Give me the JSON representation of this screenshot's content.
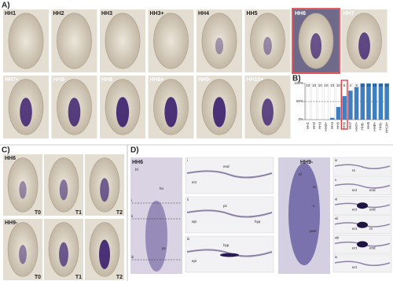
{
  "panels": {
    "a": "A)",
    "b": "B)",
    "c": "C)",
    "d": "D)"
  },
  "panel_a": {
    "labels": [
      "HH1",
      "HH2",
      "HH3",
      "HH3+",
      "HH4",
      "HH5",
      "HH6",
      "HH7",
      "HH7+",
      "HH8-",
      "HH8",
      "HH8+",
      "HH9-",
      "HH10+"
    ],
    "highlight": 6
  },
  "chart_data": {
    "type": "bar",
    "categories": [
      "HH1",
      "HH2",
      "HH3",
      "HH3+",
      "HH4",
      "HH5",
      "HH6",
      "HH7",
      "HH7+",
      "HH8-",
      "HH8",
      "HH8+",
      "HH9-",
      "HH10+"
    ],
    "values": [
      0,
      0,
      0,
      0,
      5,
      35,
      65,
      80,
      90,
      100,
      100,
      100,
      100,
      100
    ],
    "counts": [
      10,
      10,
      10,
      10,
      10,
      10,
      6,
      4,
      9,
      10,
      10,
      10,
      10,
      10
    ],
    "color": "#3d7fc1",
    "highlight": 6,
    "highlight_color": "#d9262b",
    "ylim": [
      0,
      100
    ],
    "yticks": [
      {
        "value": 0,
        "label": "0%"
      },
      {
        "value": 50,
        "label": "50%"
      },
      {
        "value": 100,
        "label": "100%"
      }
    ],
    "reference_line": 50
  },
  "panel_c": {
    "stages": [
      "HH6",
      "HH9-"
    ],
    "times": [
      "T0",
      "T1",
      "T2"
    ]
  },
  "panel_d": {
    "left_stage": "HH6",
    "left_marks": [
      "hf",
      "hn",
      "ps"
    ],
    "levels": [
      "i",
      "ii",
      "iii"
    ],
    "sections": [
      [
        "ect",
        "end"
      ],
      [
        "epi",
        "ps",
        "hyp"
      ],
      [
        "epi",
        "hyp"
      ]
    ],
    "right_stage": "HH9-",
    "right_marks": [
      "nf",
      "nt",
      "s",
      "psm"
    ],
    "right_sections": [
      [
        "iv",
        "nt"
      ],
      [
        "v",
        "ect",
        "end"
      ],
      [
        "vi",
        "ect",
        "end"
      ],
      [
        "vii",
        "ect",
        "nt"
      ],
      [
        "viii",
        "ect",
        "end"
      ],
      [
        "ix",
        "ect"
      ]
    ]
  }
}
